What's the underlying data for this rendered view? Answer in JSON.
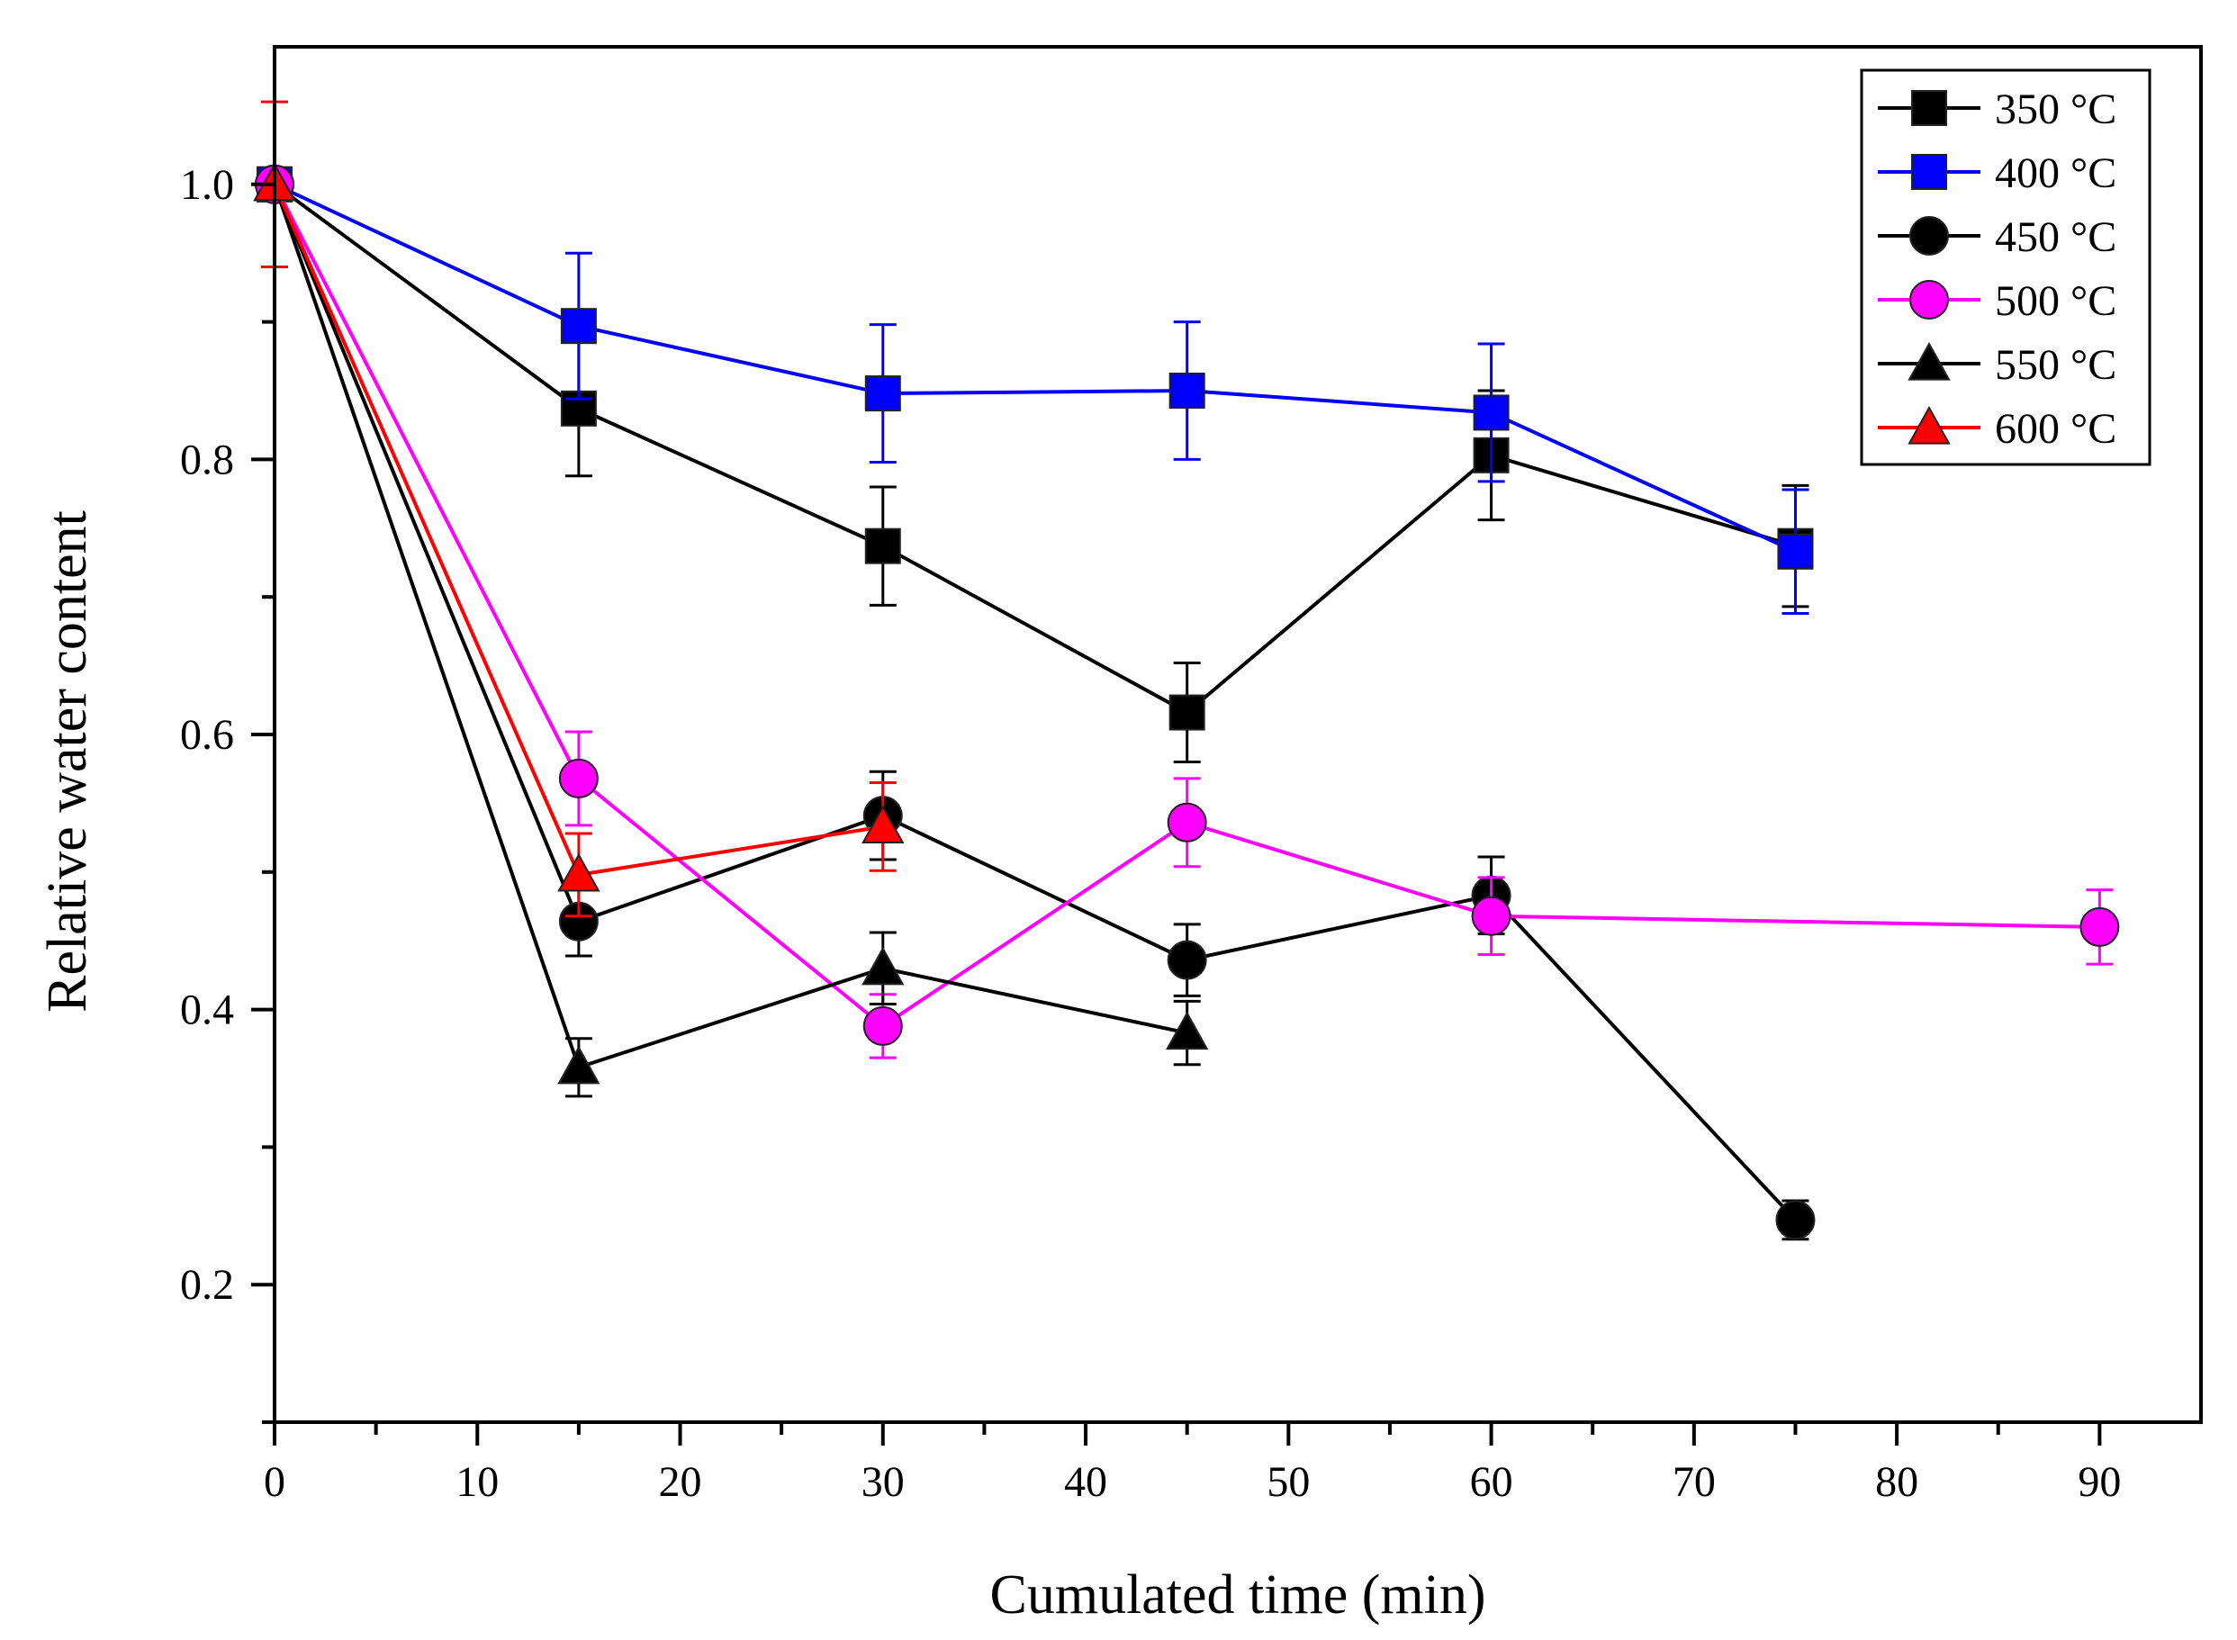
{
  "chart_data": {
    "type": "line",
    "title": "",
    "xlabel": "Cumulated time (min)",
    "ylabel": "Relative water content",
    "xlim": [
      0,
      95
    ],
    "ylim": [
      0.1,
      1.1
    ],
    "xticks": [
      0,
      10,
      20,
      30,
      40,
      50,
      60,
      70,
      80,
      90
    ],
    "xtick_labels": [
      "0",
      "10",
      "20",
      "30",
      "40",
      "50",
      "60",
      "70",
      "80",
      "90"
    ],
    "yticks": [
      0.2,
      0.4,
      0.6,
      0.8,
      1.0
    ],
    "ytick_labels": [
      "0.2",
      "0.4",
      "0.6",
      "0.8",
      "1.0"
    ],
    "grid": false,
    "legend_position": "top-right",
    "series": [
      {
        "name": "350 °C",
        "color": "#000000",
        "marker": "square",
        "x": [
          0,
          15,
          30,
          45,
          60,
          75
        ],
        "y": [
          1.0,
          0.837,
          0.737,
          0.616,
          0.803,
          0.737
        ],
        "err": [
          0.0,
          0.049,
          0.043,
          0.036,
          0.047,
          0.044
        ]
      },
      {
        "name": "400 °C",
        "color": "#0000ff",
        "marker": "square",
        "x": [
          0,
          15,
          30,
          45,
          60,
          75
        ],
        "y": [
          1.0,
          0.897,
          0.848,
          0.85,
          0.834,
          0.733
        ],
        "err": [
          0.012,
          0.053,
          0.05,
          0.05,
          0.05,
          0.045
        ]
      },
      {
        "name": "450 °C",
        "color": "#000000",
        "marker": "circle",
        "x": [
          0,
          15,
          30,
          45,
          60,
          75
        ],
        "y": [
          1.0,
          0.464,
          0.541,
          0.436,
          0.483,
          0.247
        ],
        "err": [
          0.0,
          0.025,
          0.032,
          0.026,
          0.028,
          0.014
        ]
      },
      {
        "name": "500 °C",
        "color": "#ff00ff",
        "marker": "circle",
        "x": [
          0,
          15,
          30,
          45,
          60,
          90
        ],
        "y": [
          1.0,
          0.568,
          0.388,
          0.536,
          0.468,
          0.46
        ],
        "err": [
          0.0,
          0.034,
          0.023,
          0.032,
          0.028,
          0.027
        ]
      },
      {
        "name": "550 °C",
        "color": "#000000",
        "marker": "triangle",
        "x": [
          0,
          15,
          30,
          45
        ],
        "y": [
          1.0,
          0.358,
          0.43,
          0.383
        ],
        "err": [
          0.0,
          0.021,
          0.026,
          0.023
        ]
      },
      {
        "name": "600 °C",
        "color": "#ff0000",
        "marker": "triangle",
        "x": [
          0,
          15,
          30
        ],
        "y": [
          1.0,
          0.498,
          0.533
        ],
        "err": [
          0.06,
          0.03,
          0.032
        ]
      }
    ]
  }
}
